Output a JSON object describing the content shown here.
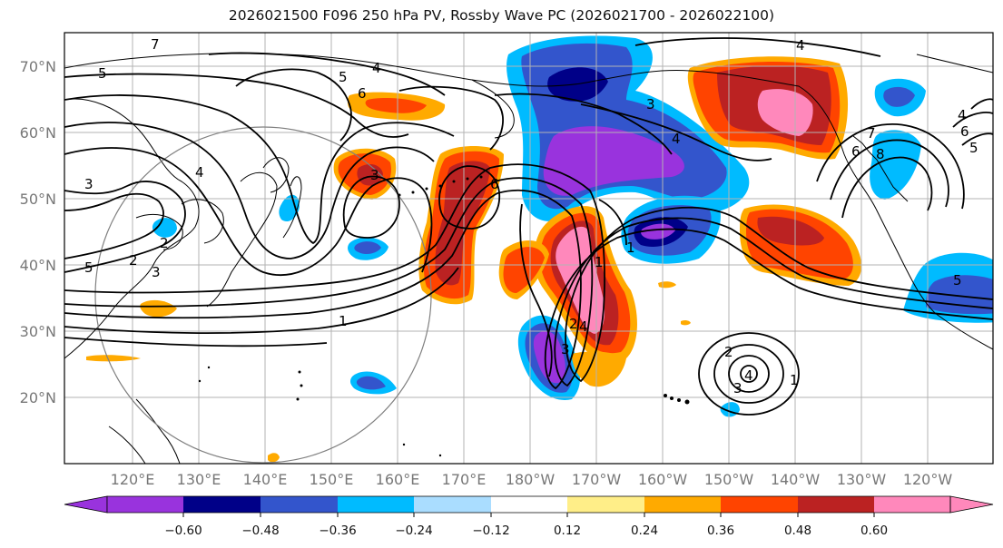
{
  "title": "2026021500 F096 250 hPa PV, Rossby Wave PC (2026021700 - 2026022100)",
  "lat_labels": [
    "70°N",
    "60°N",
    "50°N",
    "40°N",
    "30°N",
    "20°N"
  ],
  "lon_labels": [
    "120°E",
    "130°E",
    "140°E",
    "150°E",
    "160°E",
    "170°E",
    "180°W",
    "170°W",
    "160°W",
    "150°W",
    "140°W",
    "130°W",
    "120°W"
  ],
  "colorbar": {
    "colors": [
      "#9933dd",
      "#000088",
      "#3355cc",
      "#00bbff",
      "#aaddff",
      "#ffffff",
      "#ffee88",
      "#ffaa00",
      "#ff4400",
      "#bb2222",
      "#ff88bb"
    ],
    "tick_labels": [
      "−0.60",
      "−0.48",
      "−0.36",
      "−0.24",
      "−0.12",
      "0.12",
      "0.24",
      "0.36",
      "0.48",
      "0.60"
    ]
  },
  "contour_labels": [
    "5",
    "4",
    "5",
    "6",
    "3",
    "2",
    "5",
    "3",
    "4",
    "1",
    "3",
    "6",
    "1",
    "2",
    "3",
    "4",
    "4",
    "1",
    "2",
    "3",
    "4",
    "6",
    "7",
    "8",
    "6",
    "5",
    "4",
    "3",
    "5",
    "4",
    "2",
    "1",
    "7"
  ]
}
